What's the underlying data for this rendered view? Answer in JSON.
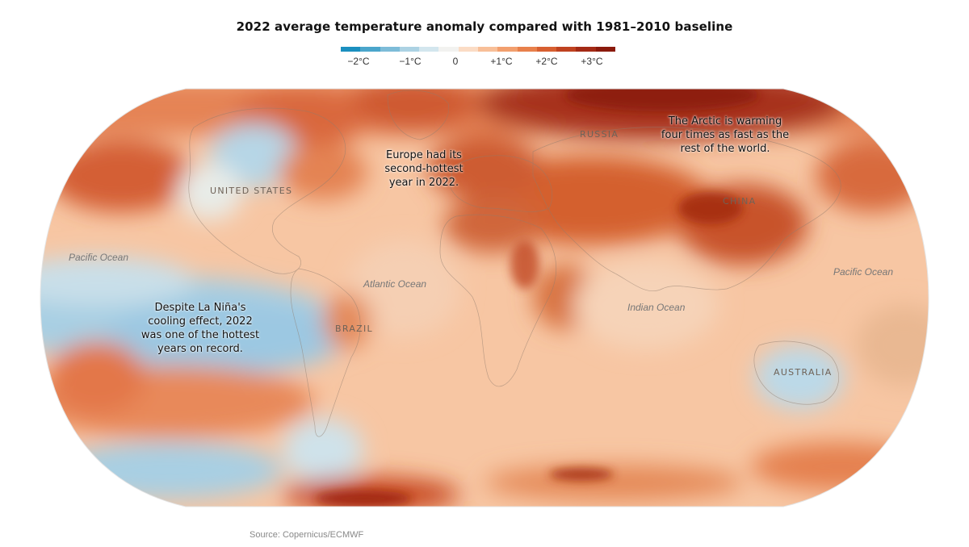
{
  "title": "2022 average temperature anomaly compared with 1981–2010 baseline",
  "legend": {
    "labels": [
      "−2°C",
      "−1°C",
      "0",
      "+1°C",
      "+2°C",
      "+3°C"
    ],
    "colors": [
      "#1b8fbf",
      "#4aa5cb",
      "#7dbcd8",
      "#acd2e3",
      "#d3e6ee",
      "#f2f2f0",
      "#fbdcc5",
      "#f8bf98",
      "#f29f6e",
      "#e8804b",
      "#d75f31",
      "#bf4220",
      "#a32a15",
      "#8a1a0c"
    ]
  },
  "labels": {
    "russia": "RUSSIA",
    "united_states": "UNITED STATES",
    "china": "CHINA",
    "brazil": "BRAZIL",
    "australia": "AUSTRALIA"
  },
  "oceans": {
    "pacific_west": "Pacific Ocean",
    "pacific_east": "Pacific Ocean",
    "atlantic": "Atlantic Ocean",
    "indian": "Indian Ocean"
  },
  "annotations": {
    "arctic": "The Arctic is warming\nfour times as fast as the\nrest of the world.",
    "europe": "Europe had its\nsecond-hottest\nyear in 2022.",
    "la_nina": "Despite La Niña's\ncooling effect, 2022\nwas one of the hottest\nyears on record."
  },
  "source": "Source: Copernicus/ECMWF"
}
